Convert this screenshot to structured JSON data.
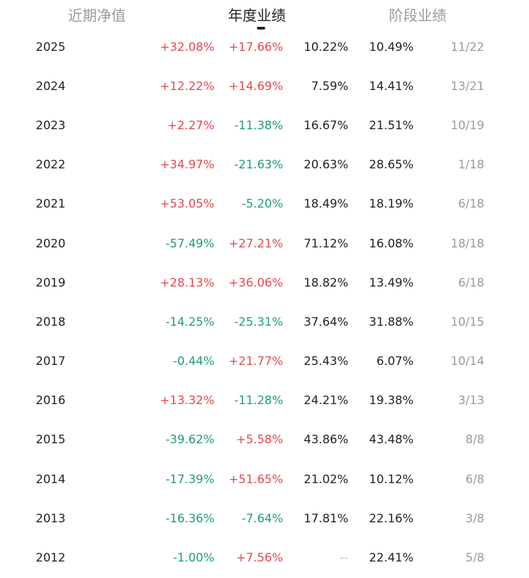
{
  "tabs": {
    "items": [
      {
        "label": "近期净值",
        "active": false
      },
      {
        "label": "年度业绩",
        "active": true
      },
      {
        "label": "阶段业绩",
        "active": false
      }
    ]
  },
  "colors": {
    "positive": "#e5484d",
    "negative": "#1f9e6e",
    "text": "#222222",
    "muted": "#9a9a9a"
  },
  "rows": [
    {
      "year": "2025",
      "return": "+32.08%",
      "benchmark": "+17.66%",
      "drawdown": "10.22%",
      "volatility": "10.49%",
      "rank": "11/22"
    },
    {
      "year": "2024",
      "return": "+12.22%",
      "benchmark": "+14.69%",
      "drawdown": "7.59%",
      "volatility": "14.41%",
      "rank": "13/21"
    },
    {
      "year": "2023",
      "return": "+2.27%",
      "benchmark": "-11.38%",
      "drawdown": "16.67%",
      "volatility": "21.51%",
      "rank": "10/19"
    },
    {
      "year": "2022",
      "return": "+34.97%",
      "benchmark": "-21.63%",
      "drawdown": "20.63%",
      "volatility": "28.65%",
      "rank": "1/18"
    },
    {
      "year": "2021",
      "return": "+53.05%",
      "benchmark": "-5.20%",
      "drawdown": "18.49%",
      "volatility": "18.19%",
      "rank": "6/18"
    },
    {
      "year": "2020",
      "return": "-57.49%",
      "benchmark": "+27.21%",
      "drawdown": "71.12%",
      "volatility": "16.08%",
      "rank": "18/18"
    },
    {
      "year": "2019",
      "return": "+28.13%",
      "benchmark": "+36.06%",
      "drawdown": "18.82%",
      "volatility": "13.49%",
      "rank": "6/18"
    },
    {
      "year": "2018",
      "return": "-14.25%",
      "benchmark": "-25.31%",
      "drawdown": "37.64%",
      "volatility": "31.88%",
      "rank": "10/15"
    },
    {
      "year": "2017",
      "return": "-0.44%",
      "benchmark": "+21.77%",
      "drawdown": "25.43%",
      "volatility": "6.07%",
      "rank": "10/14"
    },
    {
      "year": "2016",
      "return": "+13.32%",
      "benchmark": "-11.28%",
      "drawdown": "24.21%",
      "volatility": "19.38%",
      "rank": "3/13"
    },
    {
      "year": "2015",
      "return": "-39.62%",
      "benchmark": "+5.58%",
      "drawdown": "43.86%",
      "volatility": "43.48%",
      "rank": "8/8"
    },
    {
      "year": "2014",
      "return": "-17.39%",
      "benchmark": "+51.65%",
      "drawdown": "21.02%",
      "volatility": "10.12%",
      "rank": "6/8"
    },
    {
      "year": "2013",
      "return": "-16.36%",
      "benchmark": "-7.64%",
      "drawdown": "17.81%",
      "volatility": "22.16%",
      "rank": "3/8"
    },
    {
      "year": "2012",
      "return": "-1.00%",
      "benchmark": "+7.56%",
      "drawdown": "--",
      "volatility": "22.41%",
      "rank": "5/8"
    }
  ]
}
